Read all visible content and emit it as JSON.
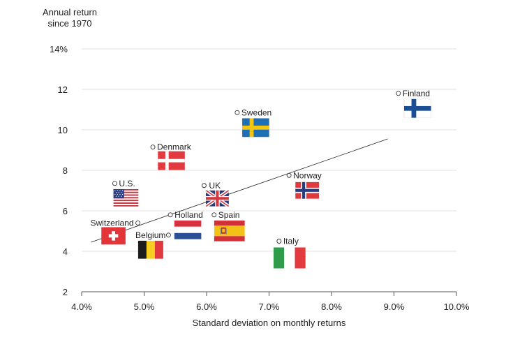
{
  "chart_data": {
    "type": "scatter",
    "title": "",
    "ylabel_line1": "Annual return",
    "ylabel_line2": "since 1970",
    "xlabel": "Standard deviation on monthly returns",
    "xlim": [
      4.0,
      10.0
    ],
    "ylim": [
      2,
      14
    ],
    "x_ticks": [
      "4.0%",
      "5.0%",
      "6.0%",
      "7.0%",
      "8.0%",
      "9.0%",
      "10.0%"
    ],
    "y_ticks": [
      "2",
      "4",
      "6",
      "8",
      "10",
      "12",
      "14%"
    ],
    "grid": "horizontal",
    "points": [
      {
        "name": "Finland",
        "x": 9.07,
        "y": 11.8,
        "flag": "finland-flag"
      },
      {
        "name": "Sweden",
        "x": 6.49,
        "y": 10.85,
        "flag": "sweden-flag"
      },
      {
        "name": "Denmark",
        "x": 5.14,
        "y": 9.15,
        "flag": "denmark-flag"
      },
      {
        "name": "Norway",
        "x": 7.32,
        "y": 7.75,
        "flag": "norway-flag"
      },
      {
        "name": "U.S.",
        "x": 4.53,
        "y": 7.35,
        "flag": "us-flag"
      },
      {
        "name": "UK",
        "x": 5.96,
        "y": 7.25,
        "flag": "uk-flag"
      },
      {
        "name": "Holland",
        "x": 5.42,
        "y": 5.8,
        "flag": "netherlands-flag"
      },
      {
        "name": "Spain",
        "x": 6.12,
        "y": 5.8,
        "flag": "spain-flag"
      },
      {
        "name": "Switzerland",
        "x": 4.9,
        "y": 5.4,
        "flag": "switzerland-flag"
      },
      {
        "name": "Belgium",
        "x": 5.39,
        "y": 4.8,
        "flag": "belgium-flag"
      },
      {
        "name": "Italy",
        "x": 7.16,
        "y": 4.5,
        "flag": "italy-flag"
      }
    ],
    "trendline": {
      "x": [
        4.15,
        8.9
      ],
      "y": [
        4.45,
        9.55
      ]
    }
  }
}
